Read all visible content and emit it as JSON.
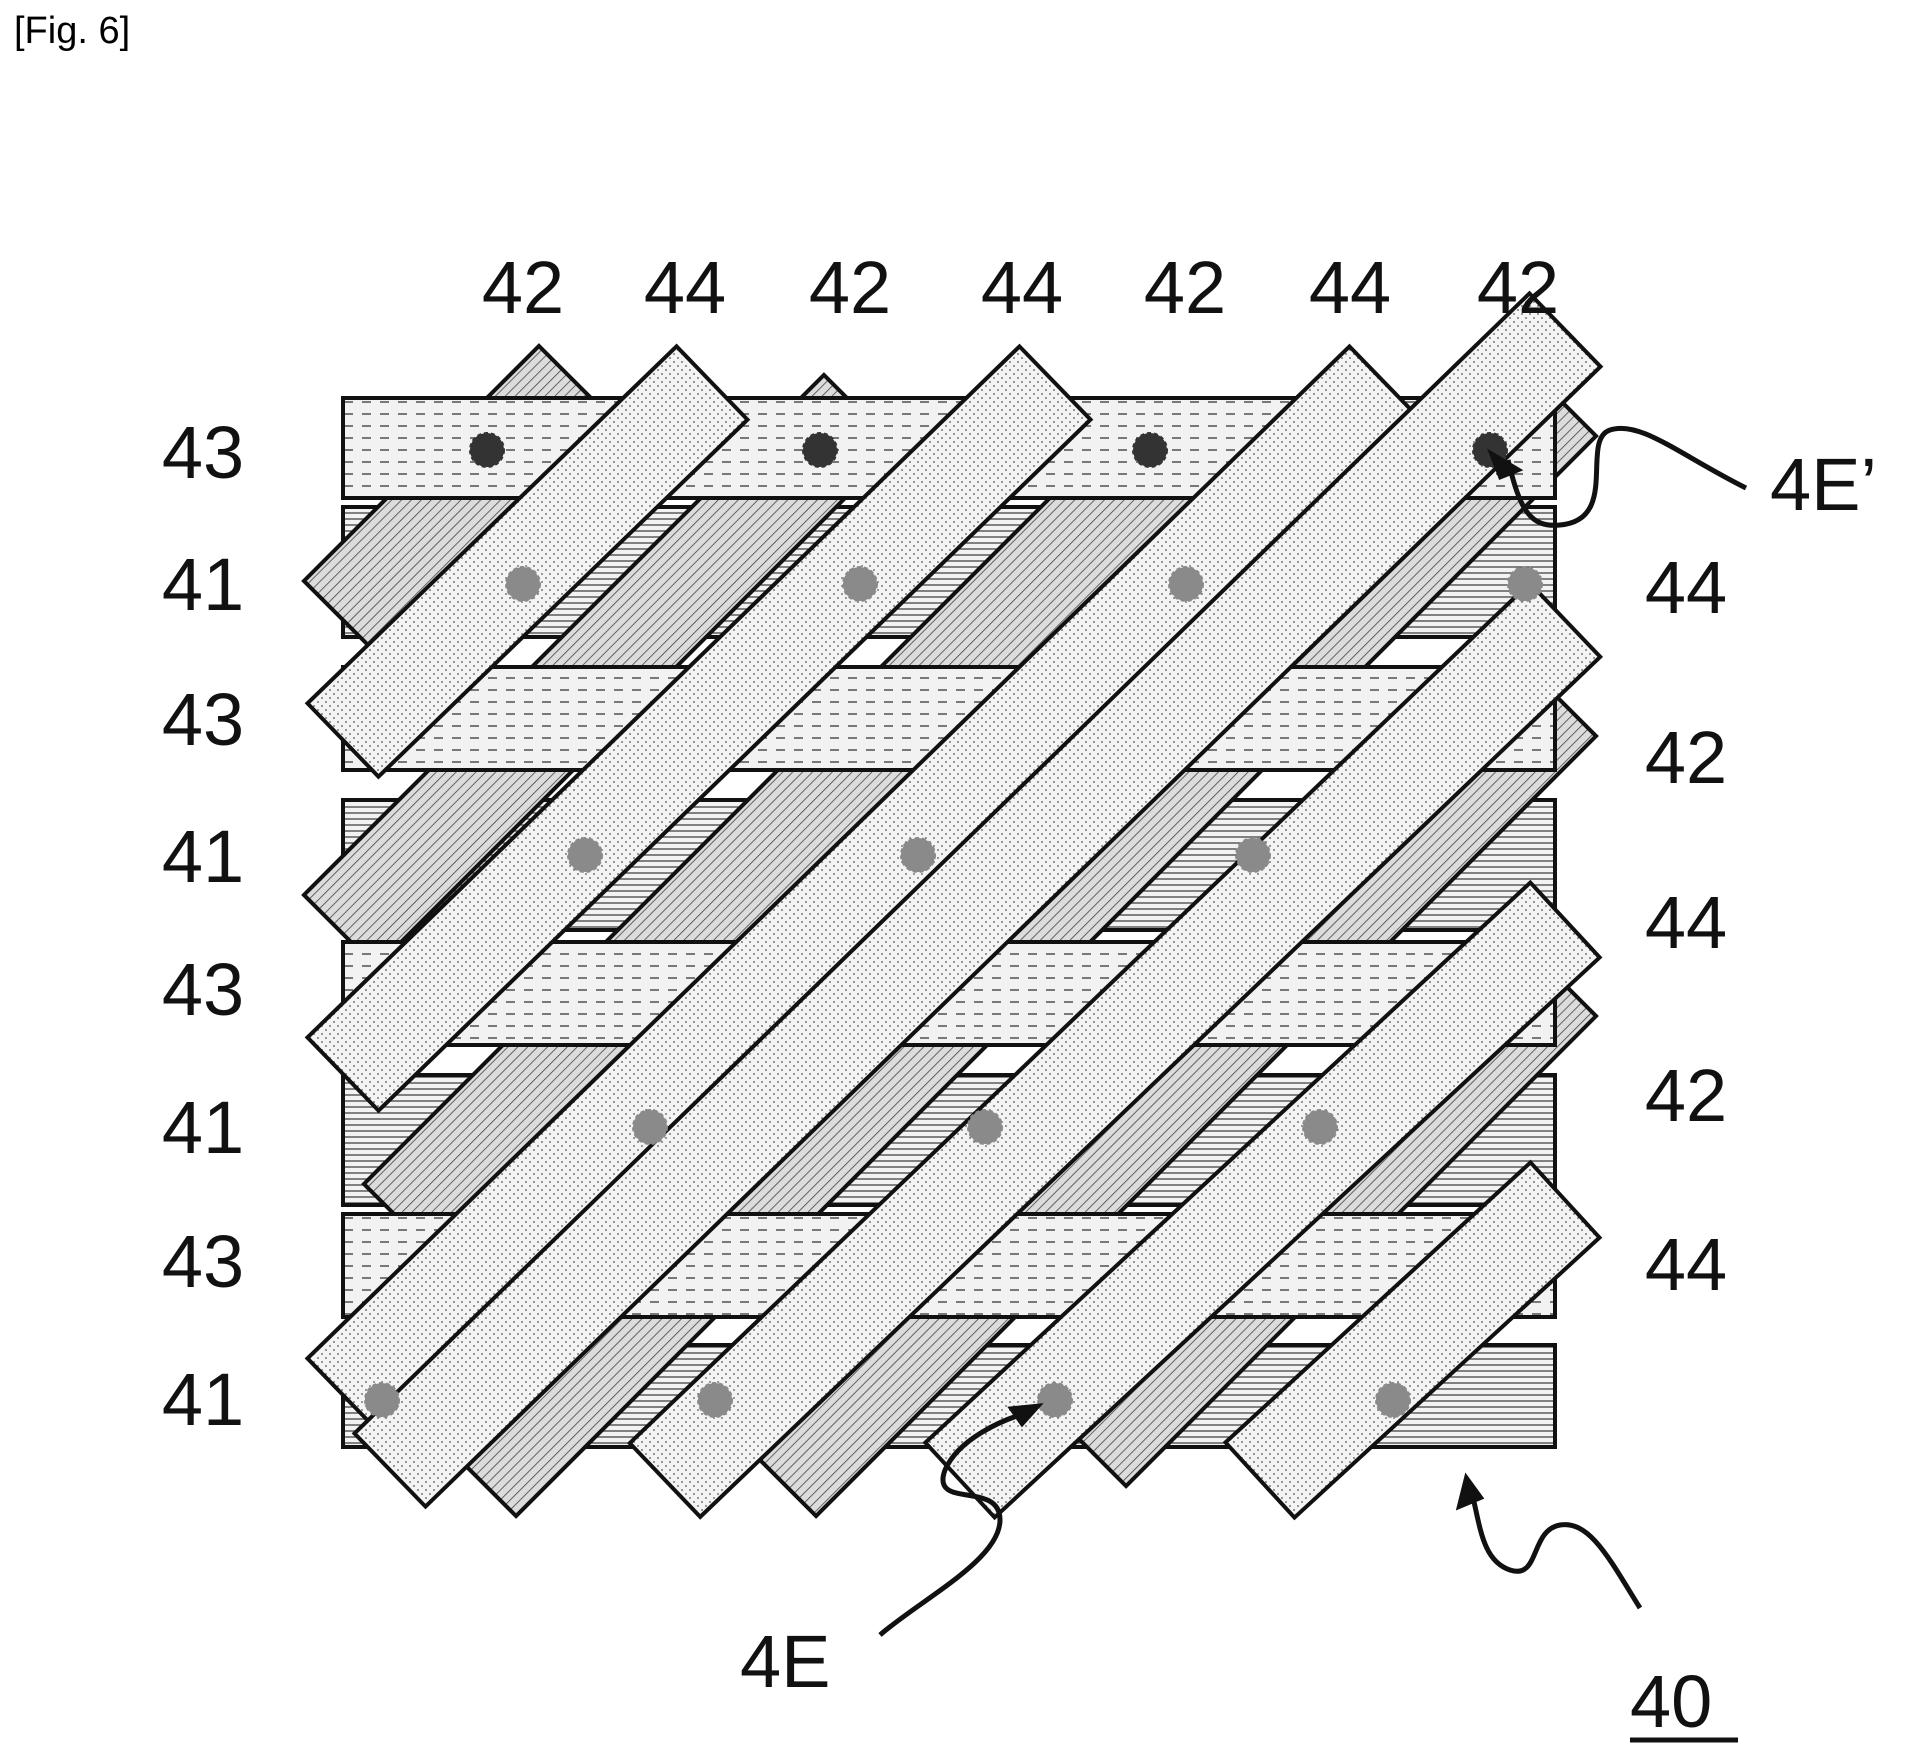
{
  "figure": {
    "caption": "[Fig. 6]",
    "top_labels": [
      "42",
      "44",
      "42",
      "44",
      "42",
      "44",
      "42"
    ],
    "left_labels": [
      "43",
      "41",
      "43",
      "41",
      "43",
      "41",
      "43",
      "41"
    ],
    "right_labels": [
      "44",
      "42",
      "44",
      "42",
      "44"
    ],
    "callout_top_right": "4E’",
    "callout_bottom": "4E",
    "reference_numeral": "40"
  },
  "colors": {
    "stroke": "#111111",
    "band_fill": "#f2f2f2",
    "dot_dark": "#333333",
    "dot_light": "#8a8a8a"
  }
}
